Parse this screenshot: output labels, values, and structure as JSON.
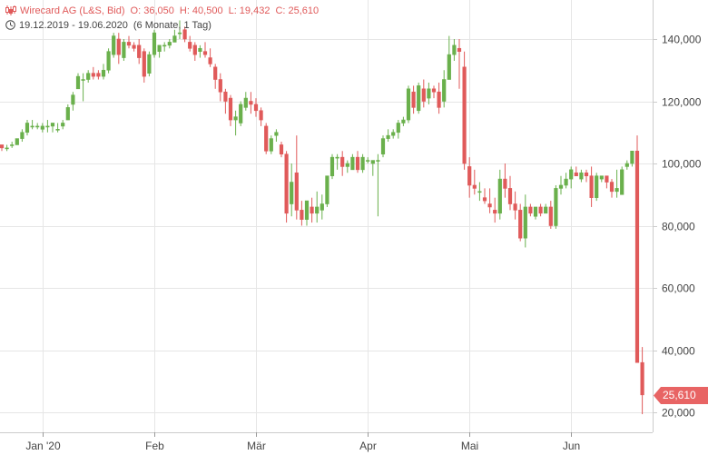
{
  "header": {
    "instrument": "Wirecard AG (L&S, Bid)",
    "open": "O: 36,050",
    "high": "H: 40,500",
    "low": "L: 19,432",
    "close": "C: 25,610",
    "range": "19.12.2019 - 19.06.2020",
    "interval": "(6 Monate, 1 Tag)"
  },
  "colors": {
    "up": "#6ab04c",
    "down": "#e05a5a",
    "grid": "#e6e6e6",
    "axis_text": "#444444",
    "price_tag": "#e86464"
  },
  "chart_data": {
    "type": "candlestick",
    "title": "Wirecard AG (L&S, Bid)",
    "xlabel": "",
    "ylabel": "",
    "ylim": [
      15000,
      150000
    ],
    "y_ticks": [
      {
        "value": 20000,
        "label": "20,000"
      },
      {
        "value": 40000,
        "label": "40,000"
      },
      {
        "value": 60000,
        "label": "60,000"
      },
      {
        "value": 80000,
        "label": "80,000"
      },
      {
        "value": 100000,
        "label": "100,000"
      },
      {
        "value": 120000,
        "label": "120,000"
      },
      {
        "value": 140000,
        "label": "140,000"
      }
    ],
    "x_ticks": [
      {
        "index": 8,
        "label": "Jan '20"
      },
      {
        "index": 30,
        "label": "Feb"
      },
      {
        "index": 50,
        "label": "Mär"
      },
      {
        "index": 72,
        "label": "Apr"
      },
      {
        "index": 92,
        "label": "Mai"
      },
      {
        "index": 112,
        "label": "Jun"
      }
    ],
    "grid": true,
    "last_price": {
      "value": 25610,
      "label": "25,610"
    },
    "ohlc": [
      [
        106,
        106,
        104,
        105
      ],
      [
        105,
        106,
        104,
        105
      ],
      [
        106,
        107,
        105,
        106
      ],
      [
        106,
        108,
        106,
        108
      ],
      [
        108,
        111,
        107,
        110
      ],
      [
        110,
        114,
        109,
        113
      ],
      [
        112,
        114,
        111,
        112
      ],
      [
        112,
        113,
        111,
        112
      ],
      [
        111,
        113,
        110,
        112
      ],
      [
        112,
        114,
        110,
        112
      ],
      [
        112,
        113,
        110,
        113
      ],
      [
        111,
        113,
        110,
        111
      ],
      [
        112,
        114,
        111,
        113
      ],
      [
        114,
        119,
        114,
        118
      ],
      [
        119,
        123,
        117,
        122
      ],
      [
        124,
        129,
        124,
        128
      ],
      [
        127,
        129,
        120,
        127
      ],
      [
        127,
        130,
        126,
        129
      ],
      [
        129,
        131,
        127,
        128
      ],
      [
        129,
        130,
        127,
        128
      ],
      [
        128,
        132,
        127,
        130
      ],
      [
        130,
        137,
        129,
        136
      ],
      [
        135,
        142,
        134,
        141
      ],
      [
        140,
        142,
        132,
        135
      ],
      [
        134,
        140,
        133,
        139
      ],
      [
        139,
        141,
        137,
        138
      ],
      [
        138,
        139,
        136,
        137
      ],
      [
        138,
        140,
        132,
        134
      ],
      [
        136,
        137,
        126,
        128
      ],
      [
        129,
        136,
        128,
        135
      ],
      [
        135,
        143,
        134,
        142
      ],
      [
        136,
        138,
        134,
        138
      ],
      [
        138,
        139,
        136,
        138
      ],
      [
        138,
        140,
        137,
        139
      ],
      [
        139,
        143,
        139,
        141
      ],
      [
        142,
        146,
        140,
        142
      ],
      [
        143,
        144,
        139,
        140
      ],
      [
        139,
        141,
        136,
        137
      ],
      [
        138,
        139,
        133,
        135
      ],
      [
        136,
        138,
        134,
        137
      ],
      [
        136,
        139,
        134,
        135
      ],
      [
        134,
        137,
        131,
        132
      ],
      [
        131,
        132,
        124,
        127
      ],
      [
        127,
        129,
        120,
        123
      ],
      [
        123,
        124,
        116,
        120
      ],
      [
        121,
        122,
        112,
        114
      ],
      [
        114,
        117,
        109,
        115
      ],
      [
        113,
        120,
        112,
        119
      ],
      [
        118,
        123,
        117,
        121
      ],
      [
        120,
        123,
        116,
        119
      ],
      [
        119,
        121,
        115,
        117
      ],
      [
        117,
        118,
        112,
        114
      ],
      [
        112,
        113,
        103,
        104
      ],
      [
        104,
        109,
        103,
        108
      ],
      [
        109,
        111,
        107,
        110
      ],
      [
        106,
        107,
        102,
        103
      ],
      [
        103,
        104,
        81,
        84
      ],
      [
        87,
        100,
        83,
        94
      ],
      [
        97,
        109,
        82,
        85
      ],
      [
        85,
        88,
        80,
        82
      ],
      [
        82,
        88,
        80,
        88
      ],
      [
        86,
        89,
        81,
        84
      ],
      [
        84,
        91,
        81,
        86
      ],
      [
        85,
        90,
        82,
        87
      ],
      [
        87,
        96,
        86,
        96
      ],
      [
        96,
        103,
        95,
        102
      ],
      [
        102,
        103,
        98,
        102
      ],
      [
        102,
        104,
        96,
        99
      ],
      [
        99,
        101,
        97,
        100
      ],
      [
        98,
        103,
        98,
        102
      ],
      [
        102,
        104,
        97,
        98
      ],
      [
        98,
        103,
        97,
        102
      ],
      [
        101,
        102,
        100,
        101
      ],
      [
        100,
        101,
        96,
        101
      ],
      [
        101,
        103,
        83,
        101
      ],
      [
        103,
        109,
        102,
        108
      ],
      [
        108,
        111,
        107,
        109
      ],
      [
        109,
        111,
        108,
        110
      ],
      [
        110,
        114,
        108,
        113
      ],
      [
        113,
        115,
        112,
        114
      ],
      [
        114,
        125,
        113,
        124
      ],
      [
        123,
        125,
        116,
        118
      ],
      [
        117,
        126,
        116,
        125
      ],
      [
        124,
        127,
        118,
        120
      ],
      [
        121,
        126,
        119,
        124
      ],
      [
        124,
        125,
        121,
        123
      ],
      [
        123,
        126,
        116,
        118
      ],
      [
        120,
        130,
        118,
        127
      ],
      [
        127,
        141,
        127,
        135
      ],
      [
        135,
        140,
        133,
        138
      ],
      [
        137,
        140,
        124,
        136
      ],
      [
        131,
        136,
        98,
        100
      ],
      [
        99,
        102,
        89,
        93
      ],
      [
        93,
        98,
        90,
        92
      ],
      [
        91,
        94,
        88,
        91
      ],
      [
        89,
        92,
        87,
        88
      ],
      [
        87,
        92,
        84,
        86
      ],
      [
        85,
        89,
        81,
        84
      ],
      [
        84,
        98,
        82,
        95
      ],
      [
        95,
        100,
        89,
        92
      ],
      [
        92,
        96,
        85,
        87
      ],
      [
        87,
        91,
        82,
        85
      ],
      [
        85,
        87,
        75,
        76
      ],
      [
        76,
        90,
        73,
        86
      ],
      [
        86,
        87,
        83,
        84
      ],
      [
        83,
        86,
        82,
        86
      ],
      [
        86,
        87,
        83,
        84
      ],
      [
        84,
        87,
        84,
        86
      ],
      [
        86,
        88,
        79,
        80
      ],
      [
        80,
        93,
        79,
        92
      ],
      [
        92,
        96,
        90,
        93
      ],
      [
        93,
        97,
        92,
        95
      ],
      [
        95,
        99,
        92,
        98
      ],
      [
        97,
        99,
        96,
        96
      ],
      [
        95,
        98,
        94,
        97
      ],
      [
        97,
        98,
        94,
        96
      ],
      [
        96,
        99,
        86,
        89
      ],
      [
        89,
        97,
        88,
        96
      ],
      [
        95,
        96,
        94,
        96
      ],
      [
        96,
        96,
        92,
        94
      ],
      [
        94,
        95,
        89,
        91
      ],
      [
        91,
        98,
        89,
        92
      ],
      [
        90,
        99,
        90,
        98
      ],
      [
        99,
        101,
        98,
        100
      ],
      [
        100,
        104,
        99,
        104
      ],
      [
        104,
        109,
        36,
        36
      ],
      [
        36,
        41,
        19.4,
        25.6
      ]
    ]
  }
}
